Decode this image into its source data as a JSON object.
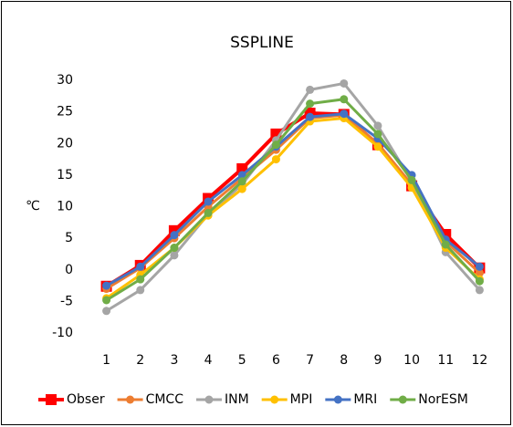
{
  "chart_data": {
    "type": "line",
    "title": "SSPLINE",
    "y_label": "℃",
    "categories": [
      "1",
      "2",
      "3",
      "4",
      "5",
      "6",
      "7",
      "8",
      "9",
      "10",
      "11",
      "12"
    ],
    "ylim": [
      -10,
      30
    ],
    "yticks": [
      -10,
      -5,
      0,
      5,
      10,
      15,
      20,
      25,
      30
    ],
    "grid": false,
    "legend": "bottom",
    "series": [
      {
        "name": "Obser",
        "color": "#ff0000",
        "marker": "square",
        "values": [
          -2.6,
          0.7,
          6.2,
          11.3,
          16.0,
          21.5,
          24.8,
          24.6,
          19.8,
          13.3,
          5.6,
          0.3
        ]
      },
      {
        "name": "CMCC",
        "color": "#ed7d31",
        "marker": "circle",
        "values": [
          -3.0,
          0.3,
          5.0,
          10.0,
          14.5,
          19.0,
          24.0,
          24.5,
          20.0,
          13.5,
          4.5,
          -0.5
        ]
      },
      {
        "name": "INM",
        "color": "#a5a5a5",
        "marker": "circle",
        "values": [
          -6.5,
          -3.2,
          2.3,
          8.8,
          13.5,
          20.5,
          28.5,
          29.5,
          22.8,
          14.0,
          2.8,
          -3.2
        ]
      },
      {
        "name": "MPI",
        "color": "#ffc000",
        "marker": "circle",
        "values": [
          -4.5,
          -0.8,
          3.5,
          8.6,
          12.8,
          17.5,
          23.5,
          24.0,
          19.5,
          13.0,
          3.5,
          -1.5
        ]
      },
      {
        "name": "MRI",
        "color": "#4472c4",
        "marker": "circle",
        "values": [
          -2.5,
          0.5,
          5.5,
          10.8,
          15.0,
          19.5,
          24.2,
          24.7,
          20.8,
          15.0,
          4.8,
          0.5
        ]
      },
      {
        "name": "NorESM",
        "color": "#70ad47",
        "marker": "circle",
        "values": [
          -4.8,
          -1.5,
          3.5,
          9.0,
          14.0,
          19.8,
          26.3,
          27.0,
          21.5,
          14.2,
          4.0,
          -1.8
        ]
      }
    ]
  }
}
